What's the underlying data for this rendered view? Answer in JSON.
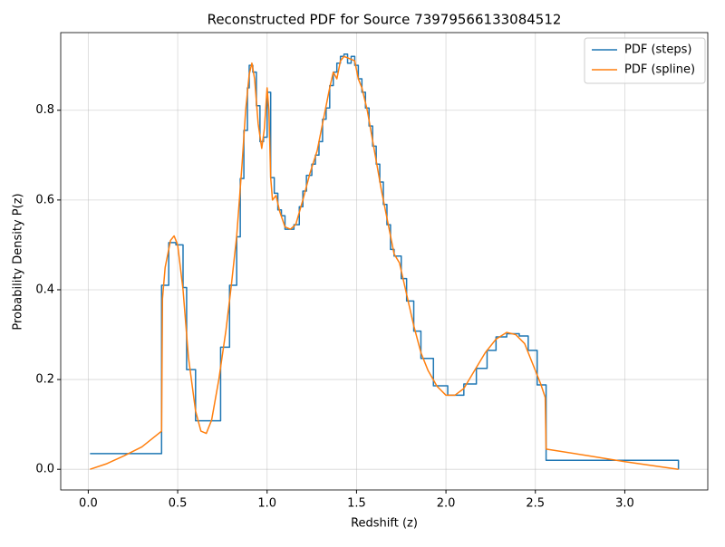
{
  "chart_data": {
    "type": "line",
    "title": "Reconstructed PDF for Source 73979566133084512",
    "xlabel": "Redshift (z)",
    "ylabel": "Probability Density P(z)",
    "xlim": [
      -0.154,
      3.464
    ],
    "ylim": [
      -0.046,
      0.973
    ],
    "xticks": [
      {
        "value": 0,
        "label": "0.0"
      },
      0.5,
      {
        "value": 1,
        "label": "1.0"
      },
      1.5,
      {
        "value": 2,
        "label": "2.0"
      },
      2.5,
      {
        "value": 3,
        "label": "3.0"
      }
    ],
    "yticks": [
      {
        "value": 0,
        "label": "0.0"
      },
      0.2,
      0.4,
      0.6,
      0.8
    ],
    "grid": true,
    "legend": "upper right",
    "series": [
      {
        "name": "PDF (steps)",
        "color": "#1f77b4",
        "drawstyle": "steps-post",
        "x": [
          0.01,
          0.41,
          0.45,
          0.49,
          0.53,
          0.55,
          0.6,
          0.74,
          0.79,
          0.83,
          0.85,
          0.87,
          0.89,
          0.9,
          0.92,
          0.94,
          0.96,
          0.98,
          1.0,
          1.02,
          1.04,
          1.06,
          1.08,
          1.1,
          1.15,
          1.18,
          1.2,
          1.22,
          1.25,
          1.27,
          1.29,
          1.31,
          1.33,
          1.35,
          1.37,
          1.39,
          1.41,
          1.43,
          1.45,
          1.47,
          1.49,
          1.51,
          1.53,
          1.55,
          1.57,
          1.59,
          1.61,
          1.63,
          1.65,
          1.67,
          1.69,
          1.71,
          1.75,
          1.78,
          1.82,
          1.86,
          1.93,
          2.01,
          2.1,
          2.17,
          2.23,
          2.28,
          2.34,
          2.41,
          2.46,
          2.51,
          2.56,
          3.3
        ],
        "values": [
          0.035,
          0.41,
          0.505,
          0.5,
          0.405,
          0.222,
          0.108,
          0.272,
          0.41,
          0.518,
          0.648,
          0.755,
          0.85,
          0.9,
          0.885,
          0.81,
          0.73,
          0.74,
          0.84,
          0.65,
          0.615,
          0.578,
          0.565,
          0.535,
          0.545,
          0.585,
          0.62,
          0.655,
          0.68,
          0.7,
          0.73,
          0.78,
          0.805,
          0.855,
          0.885,
          0.905,
          0.92,
          0.925,
          0.905,
          0.92,
          0.9,
          0.87,
          0.84,
          0.805,
          0.765,
          0.72,
          0.68,
          0.64,
          0.59,
          0.545,
          0.49,
          0.475,
          0.425,
          0.375,
          0.308,
          0.247,
          0.186,
          0.165,
          0.19,
          0.225,
          0.265,
          0.295,
          0.302,
          0.297,
          0.265,
          0.188,
          0.02,
          0.0
        ]
      },
      {
        "name": "PDF (spline)",
        "color": "#ff7f0e",
        "x": [
          0.01,
          0.1,
          0.2,
          0.3,
          0.41,
          0.415,
          0.43,
          0.46,
          0.48,
          0.5,
          0.53,
          0.56,
          0.6,
          0.63,
          0.66,
          0.69,
          0.73,
          0.77,
          0.8,
          0.83,
          0.86,
          0.88,
          0.9,
          0.915,
          0.93,
          0.95,
          0.97,
          0.985,
          1.0,
          1.01,
          1.02,
          1.03,
          1.05,
          1.07,
          1.1,
          1.13,
          1.16,
          1.2,
          1.24,
          1.28,
          1.32,
          1.35,
          1.37,
          1.39,
          1.41,
          1.43,
          1.46,
          1.49,
          1.51,
          1.53,
          1.56,
          1.6,
          1.64,
          1.68,
          1.71,
          1.74,
          1.78,
          1.82,
          1.86,
          1.9,
          1.95,
          2.0,
          2.05,
          2.1,
          2.16,
          2.22,
          2.28,
          2.34,
          2.39,
          2.44,
          2.49,
          2.53,
          2.555,
          2.56,
          2.8,
          3.0,
          3.3
        ],
        "values": [
          0.0,
          0.012,
          0.03,
          0.05,
          0.085,
          0.38,
          0.45,
          0.51,
          0.52,
          0.5,
          0.4,
          0.25,
          0.13,
          0.085,
          0.08,
          0.11,
          0.2,
          0.31,
          0.41,
          0.52,
          0.68,
          0.8,
          0.88,
          0.905,
          0.87,
          0.77,
          0.715,
          0.76,
          0.85,
          0.8,
          0.65,
          0.6,
          0.61,
          0.575,
          0.54,
          0.535,
          0.545,
          0.6,
          0.66,
          0.71,
          0.79,
          0.85,
          0.885,
          0.87,
          0.91,
          0.92,
          0.915,
          0.91,
          0.87,
          0.85,
          0.8,
          0.71,
          0.62,
          0.54,
          0.48,
          0.46,
          0.39,
          0.32,
          0.26,
          0.22,
          0.185,
          0.165,
          0.165,
          0.18,
          0.22,
          0.26,
          0.29,
          0.305,
          0.3,
          0.28,
          0.23,
          0.19,
          0.16,
          0.045,
          0.03,
          0.017,
          0.0
        ]
      }
    ]
  }
}
